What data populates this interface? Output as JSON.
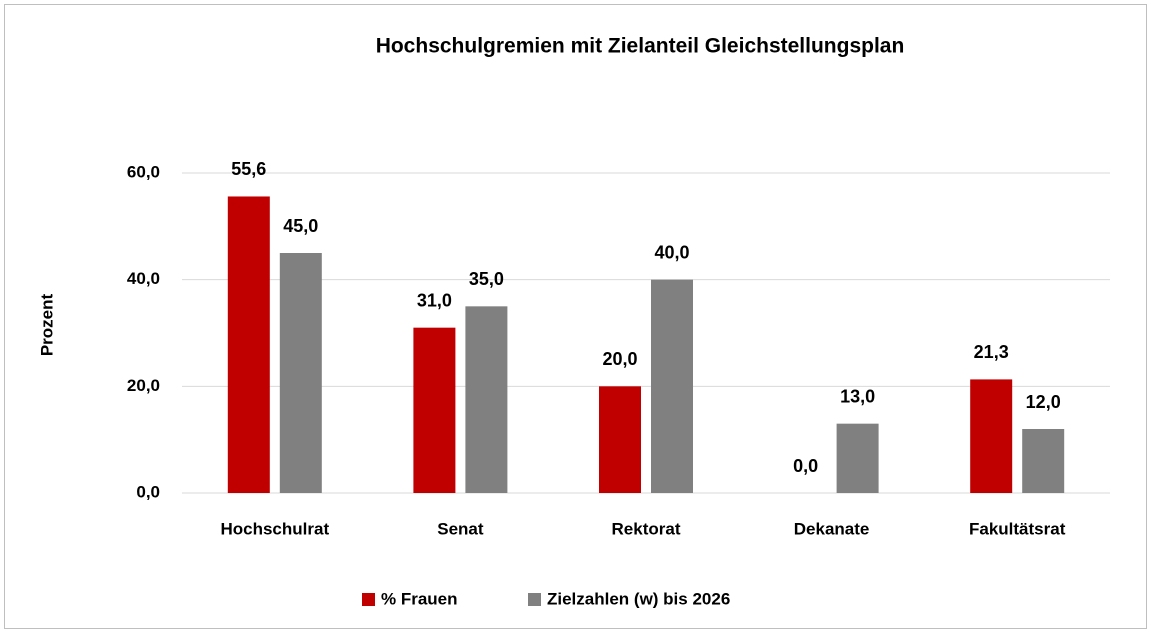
{
  "chart_data": {
    "type": "bar",
    "title": "Hochschulgremien mit Zielanteil  Gleichstellungsplan",
    "y_label": "Prozent",
    "categories": [
      "Hochschulrat",
      "Senat",
      "Rektorat",
      "Dekanate",
      "Fakultätsrat"
    ],
    "series": [
      {
        "name": "% Frauen",
        "color": "#c00000",
        "values": [
          55.6,
          31.0,
          20.0,
          0.0,
          21.3
        ],
        "value_labels": [
          "55,6",
          "31,0",
          "20,0",
          "0,0",
          "21,3"
        ]
      },
      {
        "name": "Zielzahlen (w) bis 2026",
        "color": "#808080",
        "values": [
          45.0,
          35.0,
          40.0,
          13.0,
          12.0
        ],
        "value_labels": [
          "45,0",
          "35,0",
          "40,0",
          "13,0",
          "12,0"
        ]
      }
    ],
    "ylim": [
      0,
      60
    ],
    "yticks": [
      {
        "value": 0,
        "label": "0,0"
      },
      {
        "value": 20,
        "label": "20,0"
      },
      {
        "value": 40,
        "label": "40,0"
      },
      {
        "value": 60,
        "label": "60,0"
      }
    ],
    "grid": true,
    "legend": "bottom"
  }
}
